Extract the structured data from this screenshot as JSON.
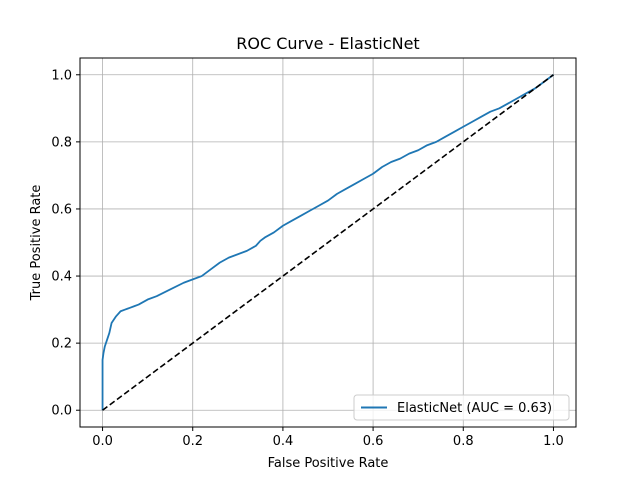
{
  "chart_data": {
    "type": "line",
    "title": "ROC Curve - ElasticNet",
    "xlabel": "False Positive Rate",
    "ylabel": "True Positive Rate",
    "xlim": [
      -0.05,
      1.05
    ],
    "ylim": [
      -0.05,
      1.05
    ],
    "xticks": [
      "0.0",
      "0.2",
      "0.4",
      "0.6",
      "0.8",
      "1.0"
    ],
    "yticks": [
      "0.0",
      "0.2",
      "0.4",
      "0.6",
      "0.8",
      "1.0"
    ],
    "grid": true,
    "legend_position": "lower-right",
    "series": [
      {
        "name": "ElasticNet (AUC = 0.63)",
        "color": "#1f77b4",
        "style": "solid",
        "x": [
          0.0,
          0.0,
          0.002,
          0.005,
          0.01,
          0.015,
          0.02,
          0.03,
          0.04,
          0.05,
          0.06,
          0.07,
          0.08,
          0.1,
          0.12,
          0.15,
          0.18,
          0.2,
          0.22,
          0.24,
          0.26,
          0.28,
          0.3,
          0.32,
          0.34,
          0.35,
          0.36,
          0.38,
          0.4,
          0.42,
          0.44,
          0.46,
          0.48,
          0.5,
          0.52,
          0.54,
          0.56,
          0.58,
          0.6,
          0.62,
          0.64,
          0.66,
          0.68,
          0.7,
          0.72,
          0.74,
          0.76,
          0.78,
          0.8,
          0.82,
          0.84,
          0.86,
          0.88,
          0.9,
          0.92,
          0.94,
          0.96,
          0.98,
          1.0
        ],
        "y": [
          0.0,
          0.15,
          0.17,
          0.19,
          0.21,
          0.23,
          0.26,
          0.28,
          0.295,
          0.3,
          0.305,
          0.31,
          0.315,
          0.33,
          0.34,
          0.36,
          0.38,
          0.39,
          0.4,
          0.42,
          0.44,
          0.455,
          0.465,
          0.475,
          0.49,
          0.505,
          0.515,
          0.53,
          0.55,
          0.565,
          0.58,
          0.595,
          0.61,
          0.625,
          0.645,
          0.66,
          0.675,
          0.69,
          0.705,
          0.725,
          0.74,
          0.75,
          0.765,
          0.775,
          0.79,
          0.8,
          0.815,
          0.83,
          0.845,
          0.86,
          0.875,
          0.89,
          0.9,
          0.915,
          0.93,
          0.945,
          0.96,
          0.98,
          1.0
        ]
      },
      {
        "name": "",
        "color": "#000000",
        "style": "dashed",
        "x": [
          0.0,
          1.0
        ],
        "y": [
          0.0,
          1.0
        ]
      }
    ]
  }
}
